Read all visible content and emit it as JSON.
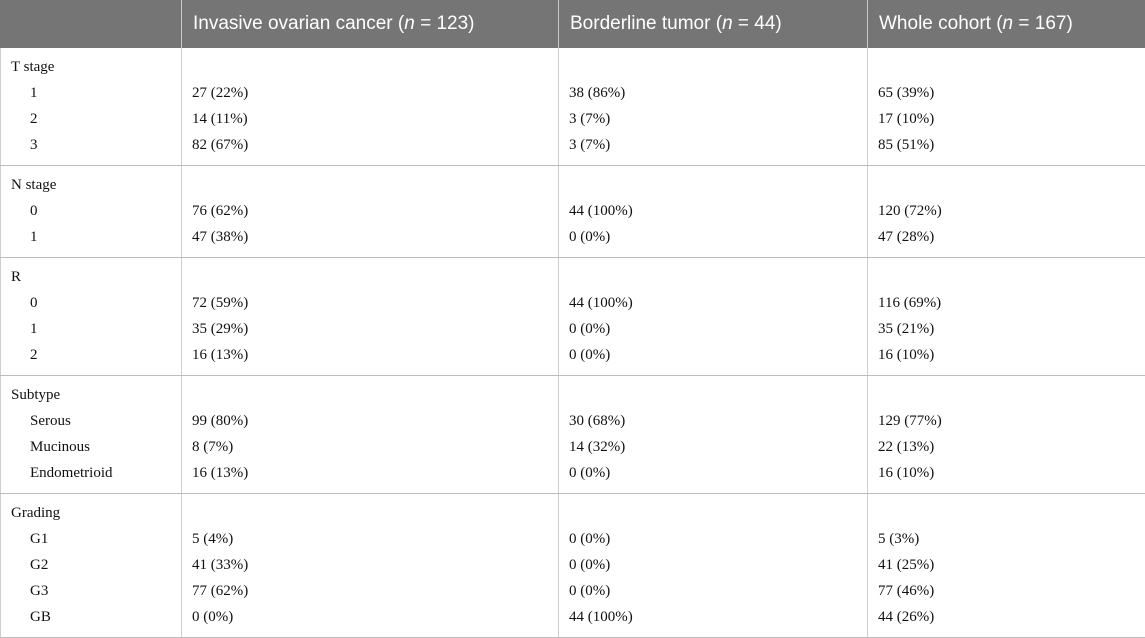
{
  "header": {
    "col0": "",
    "col1": {
      "text": "Invasive ovarian cancer (",
      "n": "n",
      "rest": " = 123)"
    },
    "col2": {
      "text": "Borderline tumor (",
      "n": "n",
      "rest": " = 44)"
    },
    "col3": {
      "text": "Whole cohort (",
      "n": "n",
      "rest": " = 167)"
    }
  },
  "groups": [
    {
      "title": "T stage",
      "rows": [
        {
          "label": "1",
          "invasive": "27 (22%)",
          "borderline": "38 (86%)",
          "whole": "65 (39%)"
        },
        {
          "label": "2",
          "invasive": "14 (11%)",
          "borderline": "3 (7%)",
          "whole": "17 (10%)"
        },
        {
          "label": "3",
          "invasive": "82 (67%)",
          "borderline": "3 (7%)",
          "whole": "85 (51%)"
        }
      ]
    },
    {
      "title": "N stage",
      "rows": [
        {
          "label": "0",
          "invasive": "76 (62%)",
          "borderline": "44 (100%)",
          "whole": "120 (72%)"
        },
        {
          "label": "1",
          "invasive": "47 (38%)",
          "borderline": "0 (0%)",
          "whole": "47 (28%)"
        }
      ]
    },
    {
      "title": "R",
      "rows": [
        {
          "label": "0",
          "invasive": "72 (59%)",
          "borderline": "44 (100%)",
          "whole": "116 (69%)"
        },
        {
          "label": "1",
          "invasive": "35 (29%)",
          "borderline": "0 (0%)",
          "whole": "35 (21%)"
        },
        {
          "label": "2",
          "invasive": "16 (13%)",
          "borderline": "0 (0%)",
          "whole": "16 (10%)"
        }
      ]
    },
    {
      "title": "Subtype",
      "rows": [
        {
          "label": "Serous",
          "invasive": "99 (80%)",
          "borderline": "30 (68%)",
          "whole": "129 (77%)"
        },
        {
          "label": "Mucinous",
          "invasive": "8 (7%)",
          "borderline": "14 (32%)",
          "whole": "22 (13%)"
        },
        {
          "label": "Endometrioid",
          "invasive": "16 (13%)",
          "borderline": "0 (0%)",
          "whole": "16 (10%)"
        }
      ]
    },
    {
      "title": "Grading",
      "rows": [
        {
          "label": "G1",
          "invasive": "5 (4%)",
          "borderline": "0 (0%)",
          "whole": "5 (3%)"
        },
        {
          "label": "G2",
          "invasive": "41 (33%)",
          "borderline": "0 (0%)",
          "whole": "41 (25%)"
        },
        {
          "label": "G3",
          "invasive": "77 (62%)",
          "borderline": "0 (0%)",
          "whole": "77 (46%)"
        },
        {
          "label": "GB",
          "invasive": "0 (0%)",
          "borderline": "44 (100%)",
          "whole": "44 (26%)"
        }
      ]
    }
  ]
}
